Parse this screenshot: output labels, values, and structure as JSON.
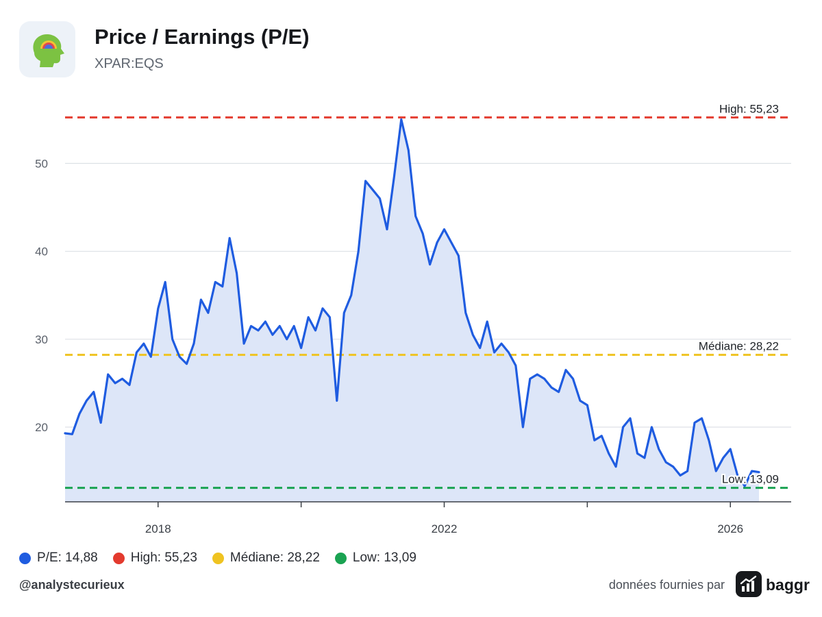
{
  "header": {
    "title": "Price / Earnings (P/E)",
    "ticker": "XPAR:EQS",
    "logo_icon": "green-head-rainbow-icon"
  },
  "chart_data": {
    "type": "line",
    "title": "Price / Earnings (P/E)",
    "subtitle": "XPAR:EQS",
    "xlabel": "",
    "ylabel": "",
    "x_ticks": [
      "2018",
      "2022",
      "2026"
    ],
    "y_ticks": [
      20,
      30,
      40,
      50
    ],
    "ylim": [
      11.5,
      56.5
    ],
    "xlim": [
      2016.7,
      2026.85
    ],
    "grid": true,
    "legend_position": "bottom-left",
    "series": [
      {
        "name": "P/E",
        "color": "#1f5ce0",
        "fill": "#dde6f8",
        "x": [
          2016.7,
          2016.8,
          2016.9,
          2017.0,
          2017.1,
          2017.2,
          2017.3,
          2017.4,
          2017.5,
          2017.6,
          2017.7,
          2017.8,
          2017.9,
          2018.0,
          2018.1,
          2018.2,
          2018.3,
          2018.4,
          2018.5,
          2018.6,
          2018.7,
          2018.8,
          2018.9,
          2019.0,
          2019.1,
          2019.2,
          2019.3,
          2019.4,
          2019.5,
          2019.6,
          2019.7,
          2019.8,
          2019.9,
          2020.0,
          2020.1,
          2020.2,
          2020.3,
          2020.4,
          2020.5,
          2020.6,
          2020.7,
          2020.8,
          2020.9,
          2021.0,
          2021.1,
          2021.2,
          2021.3,
          2021.4,
          2021.5,
          2021.6,
          2021.7,
          2021.8,
          2021.9,
          2022.0,
          2022.1,
          2022.2,
          2022.3,
          2022.4,
          2022.5,
          2022.6,
          2022.7,
          2022.8,
          2022.9,
          2023.0,
          2023.1,
          2023.2,
          2023.3,
          2023.4,
          2023.5,
          2023.6,
          2023.7,
          2023.8,
          2023.9,
          2024.0,
          2024.1,
          2024.2,
          2024.3,
          2024.4,
          2024.5,
          2024.6,
          2024.7,
          2024.8,
          2024.9,
          2025.0,
          2025.1,
          2025.2,
          2025.3,
          2025.4,
          2025.5,
          2025.6,
          2025.7,
          2025.8,
          2025.9,
          2026.0,
          2026.1,
          2026.2,
          2026.3,
          2026.4
        ],
        "values": [
          19.3,
          19.2,
          21.5,
          23.0,
          24.0,
          20.5,
          26.0,
          25.0,
          25.5,
          24.8,
          28.5,
          29.5,
          28.0,
          33.5,
          36.5,
          30.0,
          28.0,
          27.2,
          29.5,
          34.5,
          33.0,
          36.5,
          36.0,
          41.5,
          37.5,
          29.5,
          31.5,
          31.0,
          32.0,
          30.5,
          31.5,
          30.0,
          31.5,
          29.0,
          32.5,
          31.0,
          33.5,
          32.5,
          23.0,
          33.0,
          35.0,
          40.0,
          48.0,
          47.0,
          46.0,
          42.5,
          48.5,
          55.0,
          51.5,
          44.0,
          42.0,
          38.5,
          41.0,
          42.5,
          41.0,
          39.5,
          33.0,
          30.5,
          29.0,
          32.0,
          28.5,
          29.5,
          28.5,
          27.0,
          20.0,
          25.5,
          26.0,
          25.5,
          24.5,
          24.0,
          26.5,
          25.5,
          23.0,
          22.5,
          18.5,
          19.0,
          17.0,
          15.5,
          20.0,
          21.0,
          17.0,
          16.5,
          20.0,
          17.5,
          16.0,
          15.5,
          14.5,
          15.0,
          20.5,
          21.0,
          18.5,
          15.0,
          16.5,
          17.5,
          14.5,
          13.3,
          15.0,
          14.88
        ]
      }
    ],
    "reference_lines": [
      {
        "name": "High",
        "value": 55.23,
        "color": "#e33a2e",
        "label": "High: 55,23"
      },
      {
        "name": "Médiane",
        "value": 28.22,
        "color": "#efc321",
        "label": "Médiane: 28,22"
      },
      {
        "name": "Low",
        "value": 13.09,
        "color": "#1aa352",
        "label": "Low: 13,09"
      }
    ]
  },
  "legend": [
    {
      "label": "P/E: 14,88",
      "color": "#1f5ce0"
    },
    {
      "label": "High: 55,23",
      "color": "#e33a2e"
    },
    {
      "label": "Médiane: 28,22",
      "color": "#efc321"
    },
    {
      "label": "Low: 13,09",
      "color": "#1aa352"
    }
  ],
  "footer": {
    "handle": "@analystecurieux",
    "provider_text": "données fournies par",
    "brand": "baggr",
    "brand_icon": "baggr-chart-logo-icon"
  }
}
